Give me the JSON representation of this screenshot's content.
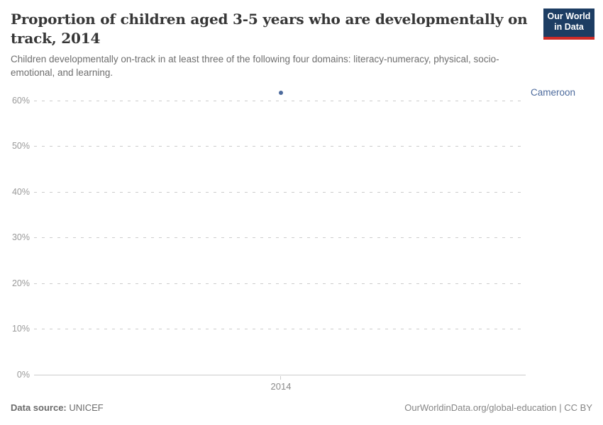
{
  "header": {
    "title": "Proportion of children aged 3-5 years who are developmentally on track, 2014",
    "subtitle": "Children developmentally on-track in at least three of the following four domains: literacy-numeracy, physical, socio-emotional, and learning.",
    "logo": {
      "line1": "Our World",
      "line2": "in Data",
      "bg_color": "#1d3d63",
      "accent_color": "#cf2b27"
    }
  },
  "chart_data": {
    "type": "scatter",
    "title": "Proportion of children aged 3-5 years who are developmentally on track, 2014",
    "x": [
      2014
    ],
    "xtick_labels": [
      "2014"
    ],
    "series": [
      {
        "name": "Cameroon",
        "color": "#4c6a9c",
        "values": [
          61.6
        ]
      }
    ],
    "yticks": [
      0,
      10,
      20,
      30,
      40,
      50,
      60
    ],
    "ytick_labels": [
      "0%",
      "10%",
      "20%",
      "30%",
      "40%",
      "50%",
      "60%"
    ],
    "ylim": [
      0,
      63
    ],
    "xlabel": "",
    "ylabel": "",
    "grid": "horizontal-dashed",
    "legend_position": "entity-label-right-of-point"
  },
  "footer": {
    "source_label": "Data source:",
    "source_value": " UNICEF",
    "citation": "OurWorldinData.org/global-education | CC BY"
  }
}
